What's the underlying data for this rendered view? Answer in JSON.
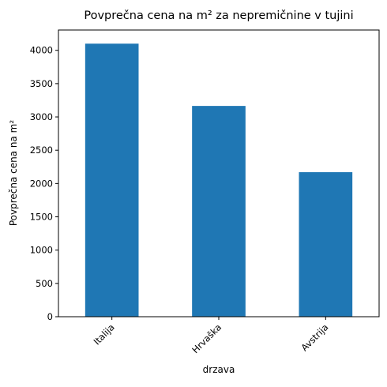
{
  "chart_data": {
    "type": "bar",
    "title": "Povprečna cena na m² za nepremičnine v tujini",
    "xlabel": "drzava",
    "ylabel": "Povprečna cena na m²",
    "categories": [
      "Italija",
      "Hrvaška",
      "Avstrija"
    ],
    "values": [
      4100,
      3165,
      2170
    ],
    "ylim": [
      0,
      4305
    ],
    "yticks": [
      0,
      500,
      1000,
      1500,
      2000,
      2500,
      3000,
      3500,
      4000
    ],
    "bar_color": "#1f77b4",
    "grid": false,
    "legend": "none"
  }
}
